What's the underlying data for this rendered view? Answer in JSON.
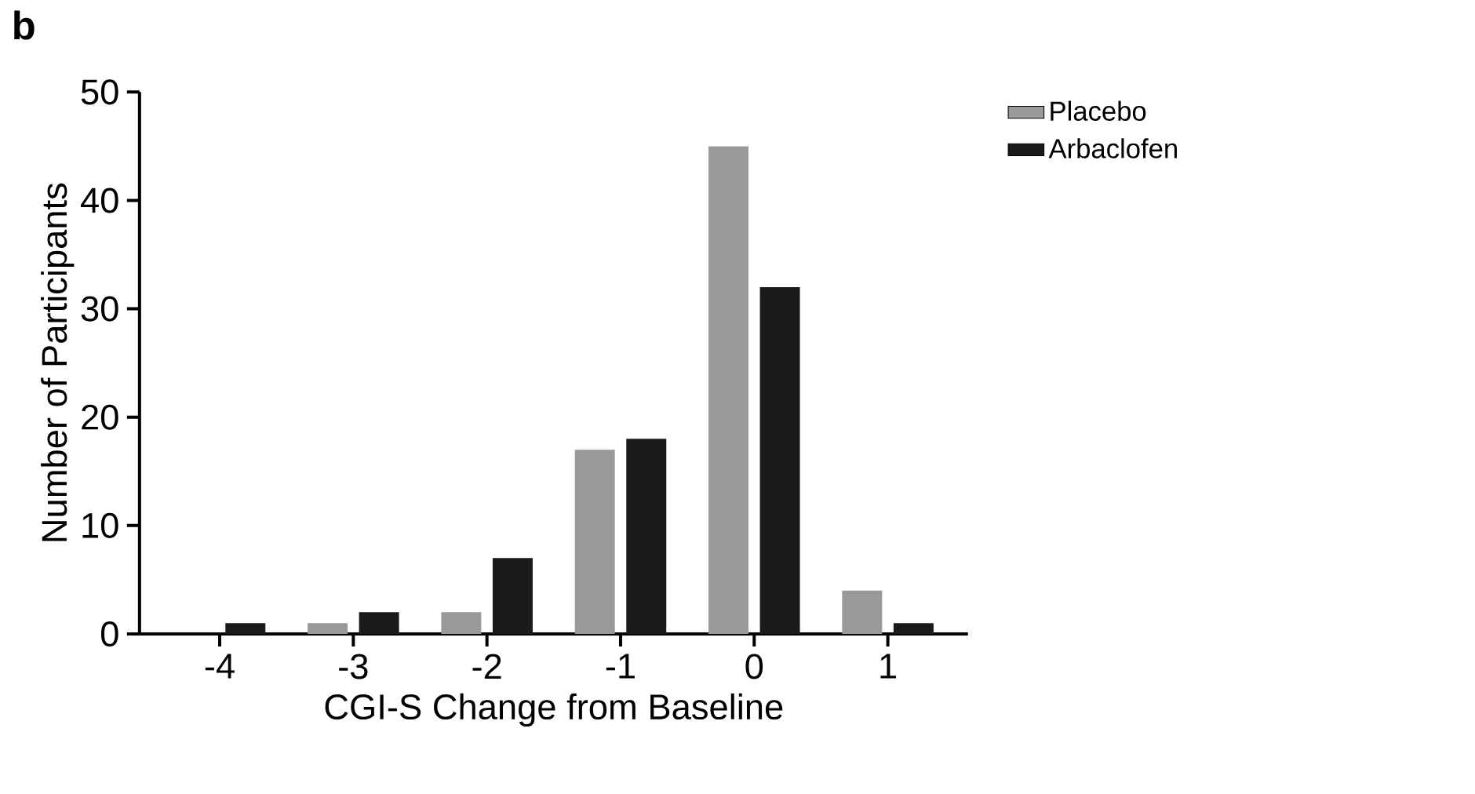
{
  "chart_data": {
    "type": "bar",
    "xlabel": "CGI-S Change from Baseline",
    "ylabel": "Number of Participants",
    "annotations": [
      "b"
    ],
    "categories": [
      "-4",
      "-3",
      "-2",
      "-1",
      "0",
      "1"
    ],
    "series": [
      {
        "name": "Placebo",
        "color": "#999999",
        "values": [
          0,
          1,
          2,
          17,
          45,
          4
        ]
      },
      {
        "name": "Arbaclofen",
        "color": "#1a1a1a",
        "values": [
          1,
          2,
          7,
          18,
          32,
          1
        ]
      }
    ],
    "ylim": [
      0,
      50
    ],
    "yticks": [
      0,
      10,
      20,
      30,
      40,
      50
    ],
    "grid": false,
    "legend": "top right"
  }
}
